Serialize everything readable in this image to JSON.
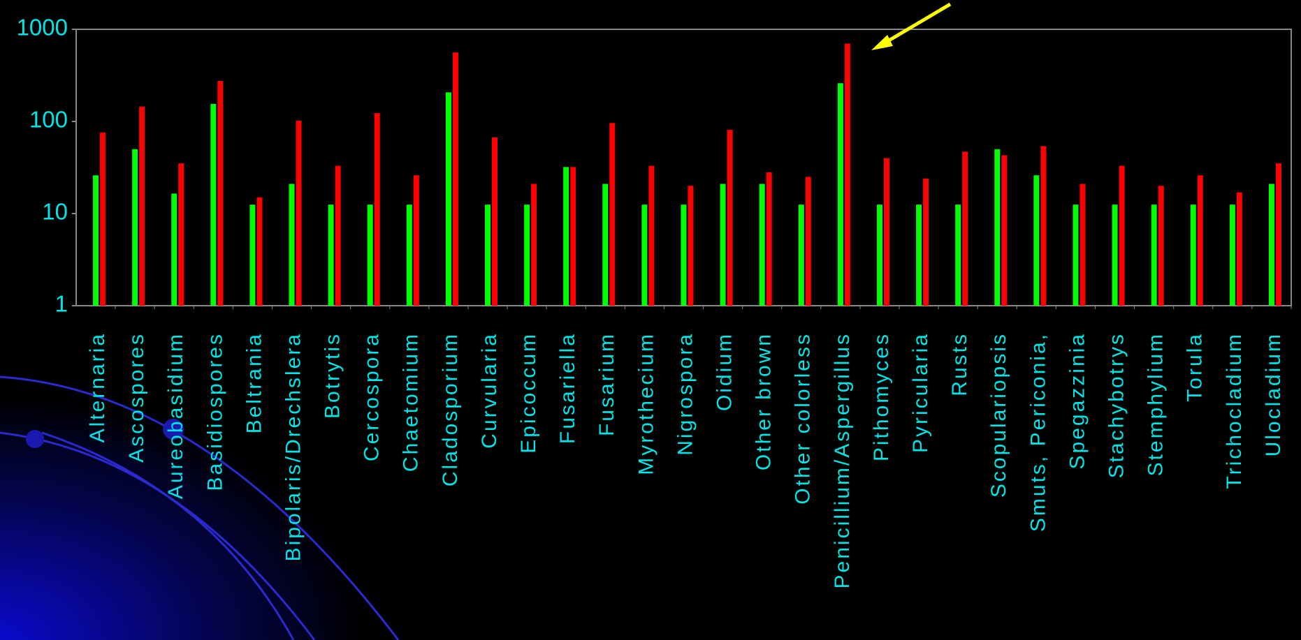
{
  "chart_data": {
    "type": "bar",
    "log_scale": true,
    "categories": [
      "Alternaria",
      "Ascospores",
      "Aureobasidium",
      "Basidiospores",
      "Beltrania",
      "Bipolaris/Drechslera",
      "Botrytis",
      "Cercospora",
      "Chaetomium",
      "Cladosporium",
      "Curvularia",
      "Epicoccum",
      "Fusariella",
      "Fusarium",
      "Myrothecium",
      "Nigrospora",
      "Oidium",
      "Other brown",
      "Other colorless",
      "Penicillium/Aspergillus",
      "Pithomyces",
      "Pyricularia",
      "Rusts",
      "Scopulariopsis",
      "Smuts, Periconia,",
      "Spegazzinia",
      "Stachybotrys",
      "Stemphylium",
      "Torula",
      "Trichocladium",
      "Ulocladium"
    ],
    "series": [
      {
        "color": "#00ff00",
        "values": [
          26,
          50,
          16.5,
          155,
          12.5,
          21,
          12.5,
          12.5,
          12.5,
          207,
          12.5,
          12.5,
          32,
          21,
          12.5,
          12.5,
          21,
          21,
          12.5,
          260,
          12.5,
          12.5,
          12.5,
          50,
          26,
          12.5,
          12.5,
          12.5,
          12.5,
          12.5,
          21
        ]
      },
      {
        "color": "#ff0000",
        "values": [
          76,
          145,
          35,
          275,
          15,
          102,
          33,
          123,
          26,
          560,
          67,
          21,
          32,
          96,
          33,
          20,
          81,
          28,
          25,
          700,
          40,
          24,
          47,
          43,
          54,
          21,
          33,
          20,
          26,
          17,
          35
        ]
      }
    ],
    "ylim": [
      1,
      1000
    ],
    "yticks": [
      1,
      10,
      100,
      1000
    ]
  }
}
